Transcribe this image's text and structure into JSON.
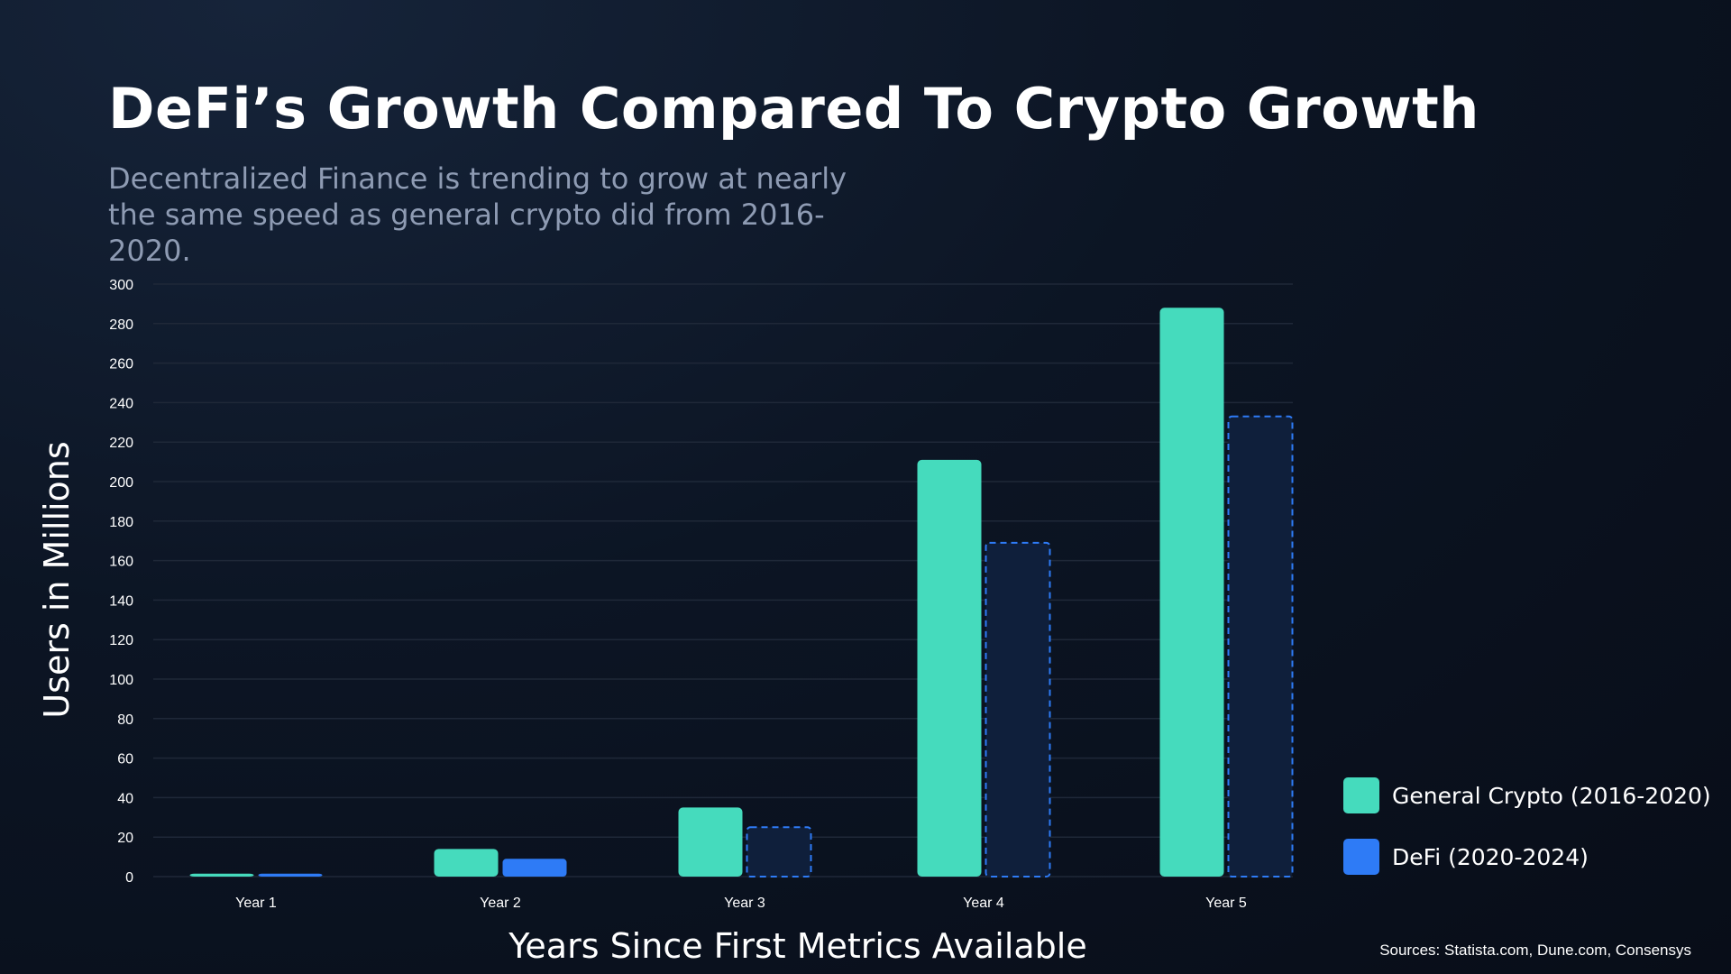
{
  "title": "DeFi’s Growth Compared To Crypto Growth",
  "subtitle": "Decentralized Finance is trending to grow at nearly the same speed as general crypto did from 2016-2020.",
  "source": "Sources: Statista.com, Dune.com, Consensys",
  "colors": {
    "crypto": "#45dbbd",
    "defi": "#2e7bf6",
    "defi_projected_fill": "#0f1f3b",
    "defi_projected_stroke": "#2e7bf6",
    "grid": "#1f2838",
    "tick": "#ffffff"
  },
  "chart_data": {
    "type": "bar",
    "categories": [
      "Year 1",
      "Year 2",
      "Year 3",
      "Year 4",
      "Year 5"
    ],
    "series": [
      {
        "name": "General Crypto (2016-2020)",
        "values": [
          1.5,
          14,
          35,
          211,
          288
        ],
        "style": "solid"
      },
      {
        "name": "DeFi (2020-2024)",
        "values": [
          1.5,
          9,
          25,
          169,
          233
        ],
        "style_by_point": [
          "solid",
          "solid",
          "dashed",
          "dashed",
          "dashed"
        ]
      }
    ],
    "xlabel": "Years Since First Metrics Available",
    "ylabel": "Users in Millions",
    "ylim": [
      0,
      300
    ],
    "yticks": [
      0,
      20,
      40,
      60,
      80,
      100,
      120,
      140,
      160,
      180,
      200,
      220,
      240,
      260,
      280,
      300
    ],
    "grid": true,
    "legend_position": "bottom-right"
  }
}
